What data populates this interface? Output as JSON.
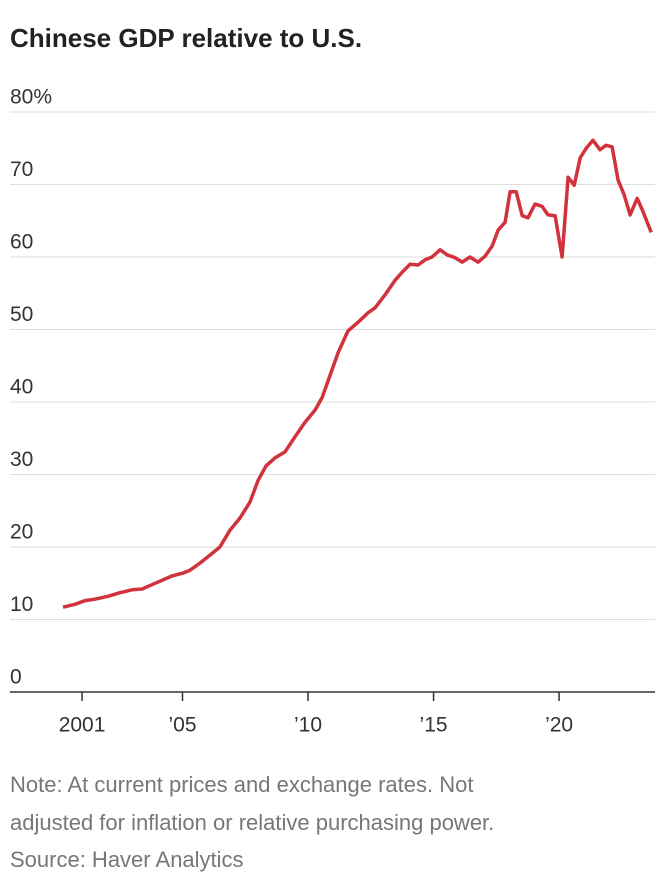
{
  "chart_data": {
    "type": "line",
    "title": "Chinese GDP relative to U.S.",
    "notes": [
      "Note: At current prices and exchange rates. Not",
      "adjusted for inflation or relative purchasing power.",
      "Source: Haver Analytics"
    ],
    "x": [
      2000.24,
      2000.72,
      2001.12,
      2001.51,
      2002.03,
      2002.51,
      2002.99,
      2003.39,
      2003.78,
      2004.18,
      2004.58,
      2005.02,
      2005.3,
      2005.7,
      2006.1,
      2006.49,
      2006.89,
      2007.29,
      2007.69,
      2008.01,
      2008.33,
      2008.69,
      2009.08,
      2009.48,
      2009.88,
      2010.28,
      2010.56,
      2010.88,
      2011.2,
      2011.59,
      2011.99,
      2012.39,
      2012.67,
      2013.07,
      2013.47,
      2013.75,
      2014.06,
      2014.38,
      2014.66,
      2014.94,
      2015.26,
      2015.54,
      2015.86,
      2016.14,
      2016.45,
      2016.77,
      2017.05,
      2017.33,
      2017.57,
      2017.85,
      2018.05,
      2018.29,
      2018.53,
      2018.76,
      2019.04,
      2019.32,
      2019.56,
      2019.84,
      2020.12,
      2020.36,
      2020.6,
      2020.84,
      2021.08,
      2021.35,
      2021.63,
      2021.87,
      2022.11,
      2022.35,
      2022.59,
      2022.83,
      2023.11,
      2023.35,
      2023.67
    ],
    "series": [
      {
        "name": "Chinese GDP relative to U.S.",
        "color": "#d1323c",
        "values": [
          11.7,
          12.1,
          12.6,
          12.8,
          13.2,
          13.7,
          14.1,
          14.2,
          14.8,
          15.4,
          16.0,
          16.4,
          16.8,
          17.8,
          18.9,
          20.0,
          22.3,
          24.0,
          26.2,
          29.2,
          31.2,
          32.3,
          33.1,
          35.2,
          37.2,
          38.9,
          40.6,
          43.7,
          46.8,
          49.8,
          51.0,
          52.3,
          53.0,
          54.8,
          56.8,
          57.9,
          59.0,
          58.9,
          59.6,
          60.0,
          61.0,
          60.3,
          59.9,
          59.3,
          60.0,
          59.3,
          60.1,
          61.5,
          63.7,
          64.8,
          69.0,
          69.0,
          65.7,
          65.4,
          67.3,
          67.0,
          65.8,
          65.7,
          60.0,
          71.0,
          69.9,
          73.7,
          75.0,
          76.1,
          74.8,
          75.4,
          75.2,
          70.6,
          68.6,
          65.8,
          68.1,
          66.2,
          63.4
        ]
      }
    ],
    "xlim": [
      1998.13,
      2023.82
    ],
    "xticks": [
      2001,
      {
        "value": 2005,
        "label": "’05"
      },
      {
        "value": 2010,
        "label": "’10"
      },
      {
        "value": 2015,
        "label": "’15"
      },
      {
        "value": 2020,
        "label": "’20"
      }
    ],
    "ylim": [
      0,
      80
    ],
    "yticks": [
      0,
      10,
      20,
      30,
      40,
      50,
      60,
      70,
      {
        "value": 80,
        "label": "80%"
      }
    ],
    "grid": true
  }
}
